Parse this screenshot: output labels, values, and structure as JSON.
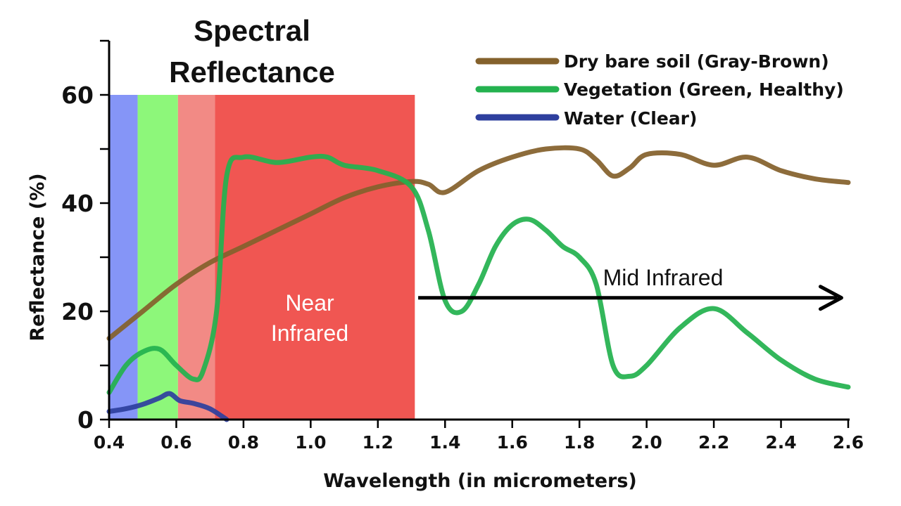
{
  "chart_data": {
    "type": "line",
    "title_lines": [
      "Spectral",
      "Reflectance"
    ],
    "xlabel": "Wavelength (in micrometers)",
    "ylabel": "Reflectance (%)",
    "xlim": [
      0.4,
      2.6
    ],
    "ylim": [
      0,
      70
    ],
    "x_ticks": [
      "0.4",
      "0.6",
      "0.8",
      "1.0",
      "1.2",
      "1.4",
      "1.6",
      "1.8",
      "2.0",
      "2.2",
      "2.4",
      "2.6"
    ],
    "y_ticks": [
      "0",
      "20",
      "40",
      "60"
    ],
    "bands": [
      {
        "name": "blue",
        "x0": 0.4,
        "x1": 0.485,
        "top": 60,
        "color": "#8595f7"
      },
      {
        "name": "green",
        "x0": 0.485,
        "x1": 0.605,
        "top": 60,
        "color": "#8df77a"
      },
      {
        "name": "red",
        "x0": 0.605,
        "x1": 0.715,
        "top": 60,
        "color": "#f28a85"
      },
      {
        "name": "near-infrared",
        "x0": 0.715,
        "x1": 1.31,
        "top": 60,
        "color": "#f05652"
      }
    ],
    "region_labels": {
      "near_infrared": [
        "Near",
        "Infrared"
      ],
      "mid_infrared": "Mid Infrared"
    },
    "series": [
      {
        "name": "Dry bare soil (Gray-Brown)",
        "color": "#84612c",
        "x": [
          0.4,
          0.5,
          0.6,
          0.7,
          0.8,
          0.9,
          1.0,
          1.1,
          1.2,
          1.3,
          1.35,
          1.4,
          1.5,
          1.6,
          1.7,
          1.8,
          1.85,
          1.9,
          1.95,
          2.0,
          2.1,
          2.2,
          2.3,
          2.4,
          2.5,
          2.6
        ],
        "values": [
          15,
          20,
          25,
          29,
          32,
          35,
          38,
          41,
          43,
          44,
          43.5,
          42,
          46,
          48.5,
          50,
          50,
          48,
          45,
          46.5,
          49,
          49,
          47,
          48.5,
          46,
          44.5,
          43.8
        ]
      },
      {
        "name": "Vegetation (Green, Healthy)",
        "color": "#24b24f",
        "x": [
          0.4,
          0.45,
          0.5,
          0.55,
          0.6,
          0.65,
          0.68,
          0.72,
          0.75,
          0.8,
          0.9,
          1.0,
          1.05,
          1.1,
          1.2,
          1.3,
          1.35,
          1.4,
          1.45,
          1.5,
          1.55,
          1.6,
          1.65,
          1.7,
          1.75,
          1.8,
          1.85,
          1.9,
          1.95,
          2.0,
          2.1,
          2.2,
          2.3,
          2.4,
          2.5,
          2.6
        ],
        "values": [
          5,
          10,
          12.5,
          13,
          10,
          7.5,
          9,
          20,
          45,
          48.5,
          47.5,
          48.5,
          48.5,
          47,
          46,
          43,
          35,
          22,
          20,
          25,
          32,
          36,
          37,
          35,
          32,
          30,
          25,
          10,
          8,
          10,
          17,
          20.5,
          16,
          11,
          7.5,
          6
        ]
      },
      {
        "name": "Water (Clear)",
        "color": "#2e3f9e",
        "x": [
          0.4,
          0.45,
          0.5,
          0.55,
          0.58,
          0.61,
          0.65,
          0.7,
          0.75
        ],
        "values": [
          1.5,
          2,
          2.8,
          4,
          4.8,
          3.5,
          3,
          2,
          0
        ]
      }
    ],
    "legend": [
      "Dry bare soil (Gray-Brown)",
      "Vegetation (Green, Healthy)",
      "Water (Clear)"
    ],
    "legend_position": "top-right",
    "arrow": {
      "x_start": 1.32,
      "x_end": 2.58,
      "y": 22.5
    }
  }
}
